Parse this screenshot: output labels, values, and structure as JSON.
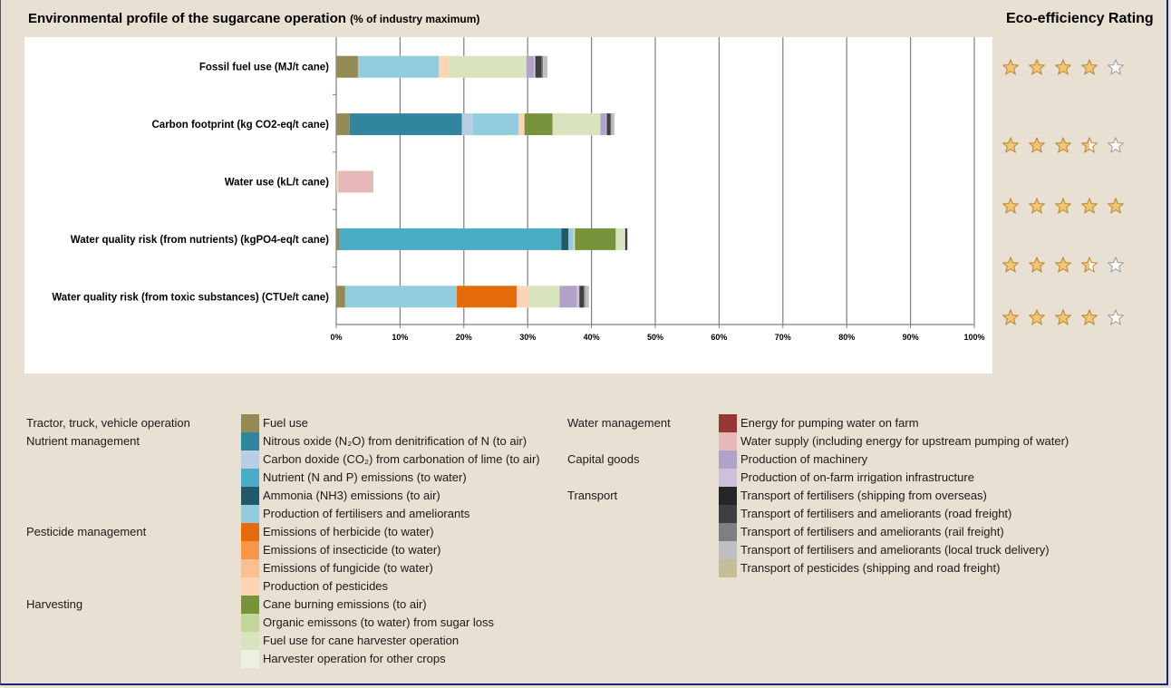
{
  "title": "Environmental profile of the sugarcane operation",
  "title_sub": "(% of industry maximum)",
  "rating_title": "Eco-efficiency Rating",
  "ratings": [
    4,
    3.5,
    5,
    3.5,
    4
  ],
  "colors": {
    "fuel_use": "#948a54",
    "n2o": "#31859c",
    "co2_lime": "#b9cde5",
    "nutrient_water": "#4bacc6",
    "ammonia": "#215968",
    "fert_prod": "#93cddd",
    "herbicide": "#e46c0a",
    "insecticide": "#f79646",
    "fungicide": "#fac090",
    "pesticide_prod": "#fcd5b5",
    "cane_burning": "#77933c",
    "organic_sugar": "#c3d69b",
    "harvester_fuel": "#d7e4bd",
    "harvester_other": "#ebf1de",
    "pumping": "#953735",
    "water_supply": "#e6b9b8",
    "machinery": "#b3a2c7",
    "irrigation_infra": "#ccc1da",
    "ship_fert": "#262626",
    "road_fert": "#404040",
    "rail_fert": "#7f7f7f",
    "local_fert": "#bfbfbf",
    "pest_transport": "#c4bd97",
    "star_fill": "#f0c577",
    "star_stroke": "#b8862f",
    "star_empty_fill": "#ffffff",
    "star_empty_stroke": "#999999"
  },
  "chart_data": {
    "type": "bar",
    "orientation": "horizontal",
    "stacked": true,
    "title": "Environmental profile of the sugarcane operation (% of industry maximum)",
    "xlabel": "",
    "ylabel": "",
    "xlim": [
      0,
      100
    ],
    "xticks": [
      "0%",
      "10%",
      "20%",
      "30%",
      "40%",
      "50%",
      "60%",
      "70%",
      "80%",
      "90%",
      "100%"
    ],
    "grid": "vertical",
    "categories": [
      "Fossil fuel use (MJ/t cane)",
      "Carbon footprint (kg CO2-eq/t cane)",
      "Water use (kL/t cane)",
      "Water quality risk (from nutrients)  (kgPO4-eq/t cane)",
      "Water quality risk (from toxic substances) (CTUe/t cane)"
    ],
    "series": [
      {
        "name": "Fuel use",
        "color_key": "fuel_use",
        "values": [
          3.4,
          2.1,
          0,
          0.5,
          1.4
        ]
      },
      {
        "name": "Nitrous oxide (N2O) from denitrification of N (to air)",
        "color_key": "n2o",
        "values": [
          0,
          17.6,
          0,
          0,
          0
        ]
      },
      {
        "name": "Carbon doxide (CO2) from carbonation of lime (to air)",
        "color_key": "co2_lime",
        "values": [
          0,
          1.7,
          0,
          0,
          0
        ]
      },
      {
        "name": "Nutrient (N and P) emissions (to water)",
        "color_key": "nutrient_water",
        "values": [
          0,
          0,
          0,
          34.8,
          0
        ]
      },
      {
        "name": "Ammonia (NH3) emissions (to air)",
        "color_key": "ammonia",
        "values": [
          0,
          0,
          0,
          1.1,
          0
        ]
      },
      {
        "name": "Production of fertilisers and ameliorants",
        "color_key": "fert_prod",
        "values": [
          12.7,
          7.2,
          0,
          0.8,
          17.5
        ]
      },
      {
        "name": "Emissions of herbicide (to water)",
        "color_key": "herbicide",
        "values": [
          0,
          0,
          0,
          0,
          9.4
        ]
      },
      {
        "name": "Emissions of insecticide (to water)",
        "color_key": "insecticide",
        "values": [
          0,
          0,
          0,
          0,
          0
        ]
      },
      {
        "name": "Emissions of fungicide (to water)",
        "color_key": "fungicide",
        "values": [
          0,
          0,
          0,
          0,
          0
        ]
      },
      {
        "name": "Production of pesticides",
        "color_key": "pesticide_prod",
        "values": [
          1.6,
          0.9,
          0.3,
          0.2,
          2.0
        ]
      },
      {
        "name": "Cane burning emissions (to air)",
        "color_key": "cane_burning",
        "values": [
          0,
          4.4,
          0,
          6.4,
          0
        ]
      },
      {
        "name": "Organic emissons (to water) from sugar loss",
        "color_key": "organic_sugar",
        "values": [
          0,
          0,
          0,
          0,
          0
        ]
      },
      {
        "name": "Fuel use for cane harvester operation",
        "color_key": "harvester_fuel",
        "values": [
          12.1,
          7.5,
          0,
          1.5,
          4.7
        ]
      },
      {
        "name": "Harvester operation for other crops",
        "color_key": "harvester_other",
        "values": [
          0,
          0,
          0,
          0,
          0
        ]
      },
      {
        "name": "Energy for pumping water on farm",
        "color_key": "pumping",
        "values": [
          0,
          0,
          0,
          0,
          0
        ]
      },
      {
        "name": "Water supply (including energy for upstream pumping of water)",
        "color_key": "water_supply",
        "values": [
          0,
          0,
          5.3,
          0,
          0
        ]
      },
      {
        "name": "Production of machinery",
        "color_key": "machinery",
        "values": [
          1.2,
          0.9,
          0,
          0,
          2.7
        ]
      },
      {
        "name": "Production of on-farm irrigation infrastructure",
        "color_key": "irrigation_infra",
        "values": [
          0.2,
          0.1,
          0,
          0,
          0.4
        ]
      },
      {
        "name": "Transport of fertilisers (shipping from overseas)",
        "color_key": "ship_fert",
        "values": [
          0,
          0,
          0,
          0.2,
          0
        ]
      },
      {
        "name": "Transport of fertilisers and ameliorants (road freight)",
        "color_key": "road_fert",
        "values": [
          1.0,
          0.6,
          0,
          0.1,
          0.7
        ]
      },
      {
        "name": "Transport of fertilisers and ameliorants (rail freight)",
        "color_key": "rail_fert",
        "values": [
          0.2,
          0.1,
          0,
          0,
          0.2
        ]
      },
      {
        "name": "Transport of fertilisers and ameliorants (local truck delivery)",
        "color_key": "local_fert",
        "values": [
          0.7,
          0.5,
          0.2,
          0.1,
          0.6
        ]
      },
      {
        "name": "Transport of pesticides (shipping and road freight)",
        "color_key": "pest_transport",
        "values": [
          0,
          0,
          0,
          0,
          0
        ]
      }
    ]
  },
  "legend": {
    "left": [
      {
        "category": "Tractor, truck, vehicle operation",
        "items": [
          {
            "label": "Fuel use",
            "color_key": "fuel_use"
          }
        ]
      },
      {
        "category": "Nutrient management",
        "items": [
          {
            "label": "Nitrous oxide (N₂O) from denitrification of N (to air)",
            "color_key": "n2o"
          },
          {
            "label": "Carbon doxide (CO₂) from carbonation of lime (to air)",
            "color_key": "co2_lime"
          },
          {
            "label": "Nutrient (N and P) emissions (to water)",
            "color_key": "nutrient_water"
          },
          {
            "label": "Ammonia (NH3) emissions (to air)",
            "color_key": "ammonia"
          },
          {
            "label": "Production of fertilisers and ameliorants",
            "color_key": "fert_prod"
          }
        ]
      },
      {
        "category": "Pesticide management",
        "items": [
          {
            "label": "Emissions of herbicide (to water)",
            "color_key": "herbicide"
          },
          {
            "label": "Emissions of insecticide (to water)",
            "color_key": "insecticide"
          },
          {
            "label": "Emissions of fungicide (to water)",
            "color_key": "fungicide"
          },
          {
            "label": "Production of pesticides",
            "color_key": "pesticide_prod"
          }
        ]
      },
      {
        "category": "Harvesting",
        "items": [
          {
            "label": "Cane burning emissions (to air)",
            "color_key": "cane_burning"
          },
          {
            "label": "Organic emissons (to water) from sugar loss",
            "color_key": "organic_sugar"
          },
          {
            "label": "Fuel use for cane harvester operation",
            "color_key": "harvester_fuel"
          },
          {
            "label": "Harvester operation for other crops",
            "color_key": "harvester_other"
          }
        ]
      }
    ],
    "right": [
      {
        "category": "Water management",
        "items": [
          {
            "label": "Energy for pumping water on farm",
            "color_key": "pumping"
          },
          {
            "label": "Water supply (including energy for upstream pumping of water)",
            "color_key": "water_supply"
          }
        ]
      },
      {
        "category": "Capital goods",
        "items": [
          {
            "label": "Production of machinery",
            "color_key": "machinery"
          },
          {
            "label": "Production of on-farm irrigation infrastructure",
            "color_key": "irrigation_infra"
          }
        ]
      },
      {
        "category": "Transport",
        "items": [
          {
            "label": "Transport of fertilisers (shipping from overseas)",
            "color_key": "ship_fert"
          },
          {
            "label": "Transport of fertilisers and ameliorants (road freight)",
            "color_key": "road_fert"
          },
          {
            "label": "Transport of fertilisers and ameliorants (rail freight)",
            "color_key": "rail_fert"
          },
          {
            "label": "Transport of fertilisers and ameliorants (local truck delivery)",
            "color_key": "local_fert"
          },
          {
            "label": "Transport of pesticides (shipping and road freight)",
            "color_key": "pest_transport"
          }
        ]
      }
    ]
  }
}
